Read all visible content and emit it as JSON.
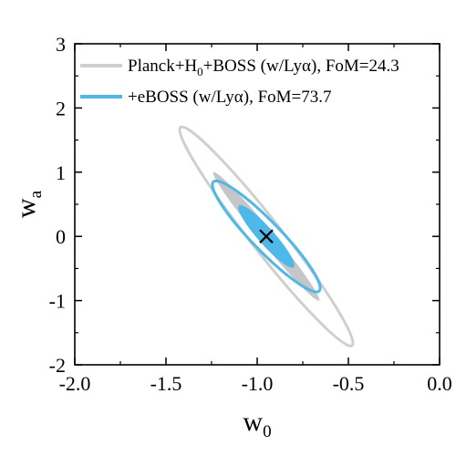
{
  "chart_data": {
    "type": "contour",
    "xlabel": "w",
    "xlabel_sub": "0",
    "ylabel": "w",
    "ylabel_sub": "a",
    "xlim": [
      -2.0,
      0.0
    ],
    "ylim": [
      -2,
      3
    ],
    "x_ticks": [
      -2.0,
      -1.5,
      -1.0,
      -0.5,
      0.0
    ],
    "x_tick_labels": [
      "-2.0",
      "-1.5",
      "-1.0",
      "-0.5",
      "0.0"
    ],
    "y_ticks": [
      -2,
      -1,
      0,
      1,
      2,
      3
    ],
    "y_tick_labels": [
      "-2",
      "-1",
      "0",
      "1",
      "2",
      "3"
    ],
    "grid": false,
    "legend_position": "top-left",
    "fiducial_marker": {
      "x": -0.95,
      "y": 0.0,
      "symbol": "×"
    },
    "series": [
      {
        "name": "Planck+H₀+BOSS (w/Lyα), FoM=24.3",
        "legend_parts": {
          "pre": "Planck+H",
          "sub": "0",
          "post": "+BOSS (w/Lyα), FoM=24.3"
        },
        "color": "#cfcfcf",
        "fill_color": "#c6c6c6",
        "contours": [
          {
            "level": "1sigma",
            "style": "filled",
            "center": [
              -0.95,
              0.0
            ],
            "corner_a": [
              -1.24,
              1.0
            ],
            "corner_b": [
              -0.66,
              -1.0
            ],
            "minor_x_halfwidth": 0.05
          },
          {
            "level": "2sigma",
            "style": "outline",
            "center": [
              -0.95,
              0.0
            ],
            "corner_a": [
              -1.42,
              1.7
            ],
            "corner_b": [
              -0.48,
              -1.7
            ],
            "minor_x_halfwidth": 0.11
          }
        ]
      },
      {
        "name": "+eBOSS (w/Lyα), FoM=73.7",
        "color": "#4db8ea",
        "fill_color": "#4db8ea",
        "contours": [
          {
            "level": "1sigma",
            "style": "filled",
            "center": [
              -0.95,
              0.0
            ],
            "corner_a": [
              -1.1,
              0.48
            ],
            "corner_b": [
              -0.8,
              -0.48
            ],
            "minor_x_halfwidth": 0.06
          },
          {
            "level": "2sigma",
            "style": "outline",
            "center": [
              -0.95,
              0.0
            ],
            "corner_a": [
              -1.24,
              0.85
            ],
            "corner_b": [
              -0.66,
              -0.85
            ],
            "minor_x_halfwidth": 0.11
          }
        ]
      }
    ]
  }
}
